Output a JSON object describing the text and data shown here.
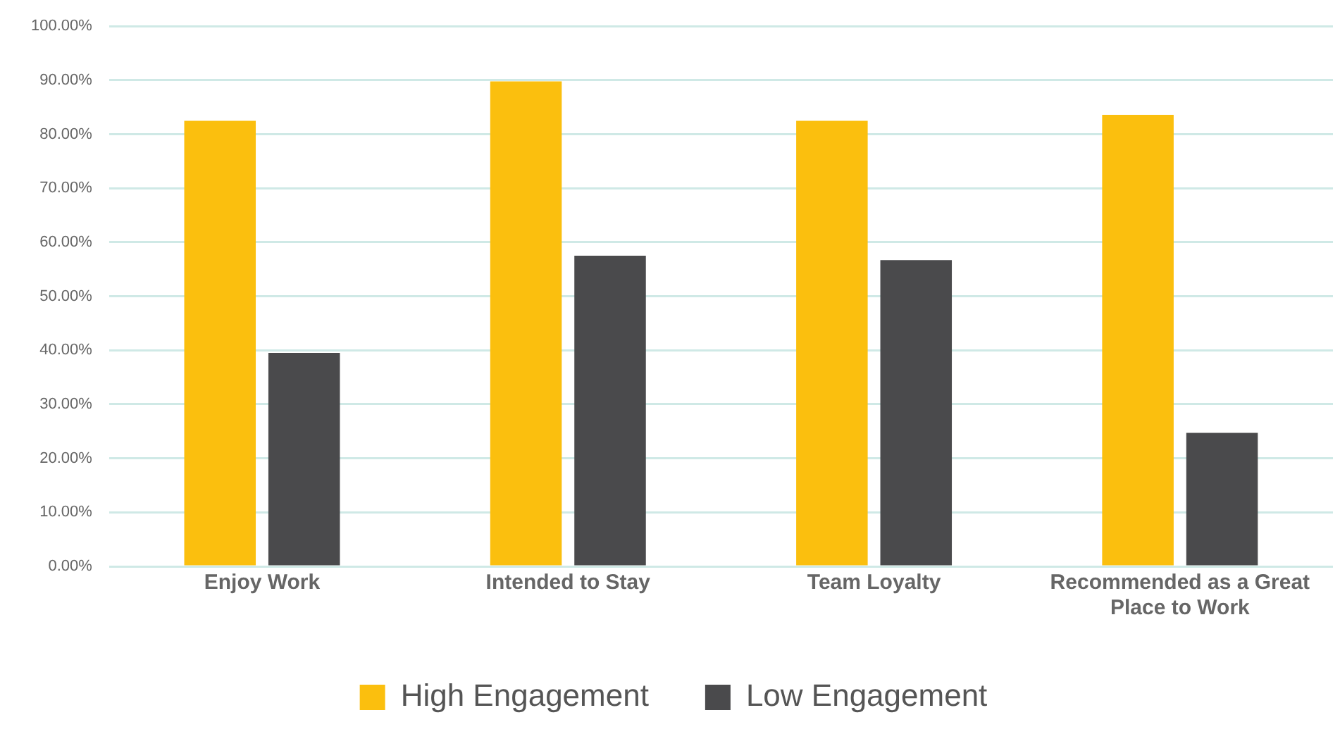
{
  "chart_data": {
    "type": "bar",
    "categories": [
      "Enjoy Work",
      "Intended to Stay",
      "Team Loyalty",
      "Recommended as a Great Place to Work"
    ],
    "series": [
      {
        "name": "High Engagement",
        "color": "#fbbf0e",
        "values": [
          82.5,
          89.8,
          82.5,
          83.6
        ]
      },
      {
        "name": "Low Engagement",
        "color": "#4a4a4c",
        "values": [
          39.5,
          57.5,
          56.7,
          24.7
        ]
      }
    ],
    "ylim": [
      0,
      100
    ],
    "yticks": [
      {
        "value": 0,
        "label": "0.00%"
      },
      {
        "value": 10,
        "label": "10.00%"
      },
      {
        "value": 20,
        "label": "20.00%"
      },
      {
        "value": 30,
        "label": "30.00%"
      },
      {
        "value": 40,
        "label": "40.00%"
      },
      {
        "value": 50,
        "label": "50.00%"
      },
      {
        "value": 60,
        "label": "60.00%"
      },
      {
        "value": 70,
        "label": "70.00%"
      },
      {
        "value": 80,
        "label": "80.00%"
      },
      {
        "value": 90,
        "label": "90.00%"
      },
      {
        "value": 100,
        "label": "100.00%"
      }
    ],
    "grid": "y",
    "legend": "bottom"
  }
}
